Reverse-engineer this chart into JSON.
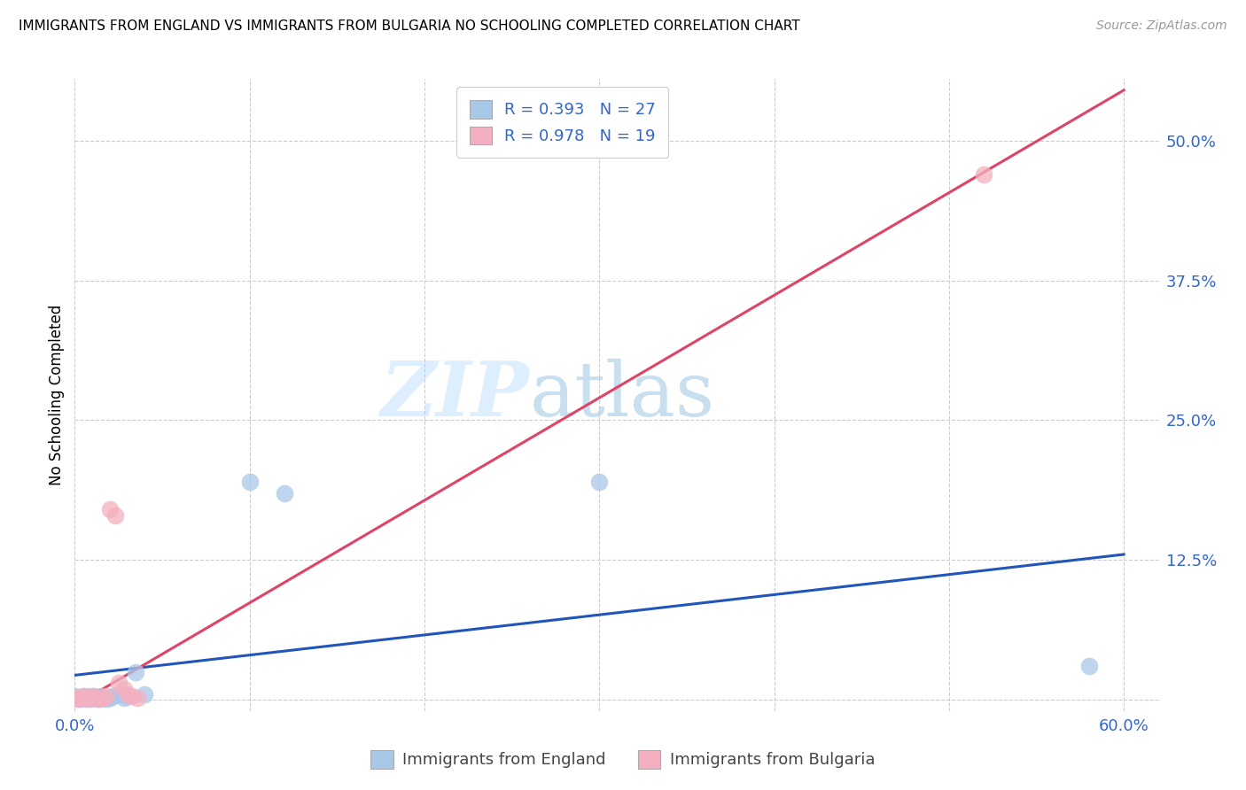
{
  "title": "IMMIGRANTS FROM ENGLAND VS IMMIGRANTS FROM BULGARIA NO SCHOOLING COMPLETED CORRELATION CHART",
  "source": "Source: ZipAtlas.com",
  "ylabel": "No Schooling Completed",
  "xlim": [
    0.0,
    0.62
  ],
  "ylim": [
    -0.01,
    0.555
  ],
  "xticks": [
    0.0,
    0.1,
    0.2,
    0.3,
    0.4,
    0.5,
    0.6
  ],
  "yticks": [
    0.0,
    0.125,
    0.25,
    0.375,
    0.5
  ],
  "xticklabels": [
    "0.0%",
    "",
    "",
    "",
    "",
    "",
    "60.0%"
  ],
  "yticklabels": [
    "",
    "12.5%",
    "25.0%",
    "37.5%",
    "50.0%"
  ],
  "england_R": 0.393,
  "england_N": 27,
  "bulgaria_R": 0.978,
  "bulgaria_N": 19,
  "england_color": "#a8c8e8",
  "bulgaria_color": "#f4b0c0",
  "england_line_color": "#2255bb",
  "bulgaria_line_color": "#dd4466",
  "watermark_zip": "ZIP",
  "watermark_atlas": "atlas",
  "watermark_color": "#ddeeff",
  "england_x": [
    0.0,
    0.002,
    0.003,
    0.004,
    0.005,
    0.006,
    0.007,
    0.008,
    0.009,
    0.01,
    0.011,
    0.012,
    0.013,
    0.015,
    0.016,
    0.018,
    0.02,
    0.022,
    0.025,
    0.028,
    0.03,
    0.035,
    0.04,
    0.1,
    0.12,
    0.3,
    0.58
  ],
  "england_y": [
    0.003,
    0.002,
    0.001,
    0.002,
    0.003,
    0.001,
    0.002,
    0.003,
    0.001,
    0.002,
    0.003,
    0.002,
    0.001,
    0.003,
    0.002,
    0.001,
    0.002,
    0.003,
    0.005,
    0.002,
    0.003,
    0.025,
    0.005,
    0.195,
    0.185,
    0.195,
    0.03
  ],
  "bulgaria_x": [
    0.0,
    0.002,
    0.003,
    0.005,
    0.007,
    0.008,
    0.01,
    0.012,
    0.014,
    0.016,
    0.018,
    0.02,
    0.023,
    0.025,
    0.028,
    0.03,
    0.033,
    0.036,
    0.52
  ],
  "bulgaria_y": [
    0.002,
    0.001,
    0.002,
    0.003,
    0.002,
    0.001,
    0.003,
    0.002,
    0.001,
    0.002,
    0.003,
    0.17,
    0.165,
    0.015,
    0.01,
    0.005,
    0.003,
    0.002,
    0.47
  ],
  "england_line_x": [
    0.0,
    0.6
  ],
  "england_line_y": [
    0.022,
    0.13
  ],
  "bulgaria_line_x": [
    0.0,
    0.6
  ],
  "bulgaria_line_y": [
    -0.005,
    0.545
  ]
}
